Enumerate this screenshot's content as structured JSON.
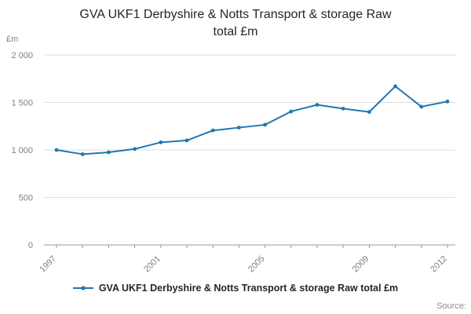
{
  "title_lines": [
    "GVA UKF1 Derbyshire & Notts Transport & storage Raw",
    "total £m"
  ],
  "y_axis_unit": "£m",
  "source_label": "Source:",
  "legend": {
    "label": "GVA UKF1 Derbyshire & Notts Transport & storage Raw total £m"
  },
  "colors": {
    "line": "#1f77b4",
    "grid": "#dedede",
    "axis": "#9a9a9a",
    "tick_text": "#7f7f7f",
    "title_text": "#262626"
  },
  "chart_data": {
    "type": "line",
    "title": "GVA UKF1 Derbyshire & Notts Transport & storage Raw total £m",
    "xlabel": "",
    "ylabel": "£m",
    "x": [
      1997,
      1998,
      1999,
      2000,
      2001,
      2002,
      2003,
      2004,
      2005,
      2006,
      2007,
      2008,
      2009,
      2010,
      2011,
      2012
    ],
    "values": [
      1000,
      955,
      975,
      1010,
      1080,
      1100,
      1205,
      1235,
      1265,
      1405,
      1475,
      1435,
      1400,
      1670,
      1455,
      1510
    ],
    "xticks": [
      1997,
      2001,
      2005,
      2009,
      2012
    ],
    "yticks": [
      {
        "v": 0,
        "label": "0"
      },
      {
        "v": 500,
        "label": "500"
      },
      {
        "v": 1000,
        "label": "1 000"
      },
      {
        "v": 1500,
        "label": "1 500"
      },
      {
        "v": 2000,
        "label": "2 000"
      }
    ],
    "ylim": [
      0,
      2000
    ],
    "grid": "horizontal",
    "legend_position": "bottom"
  }
}
